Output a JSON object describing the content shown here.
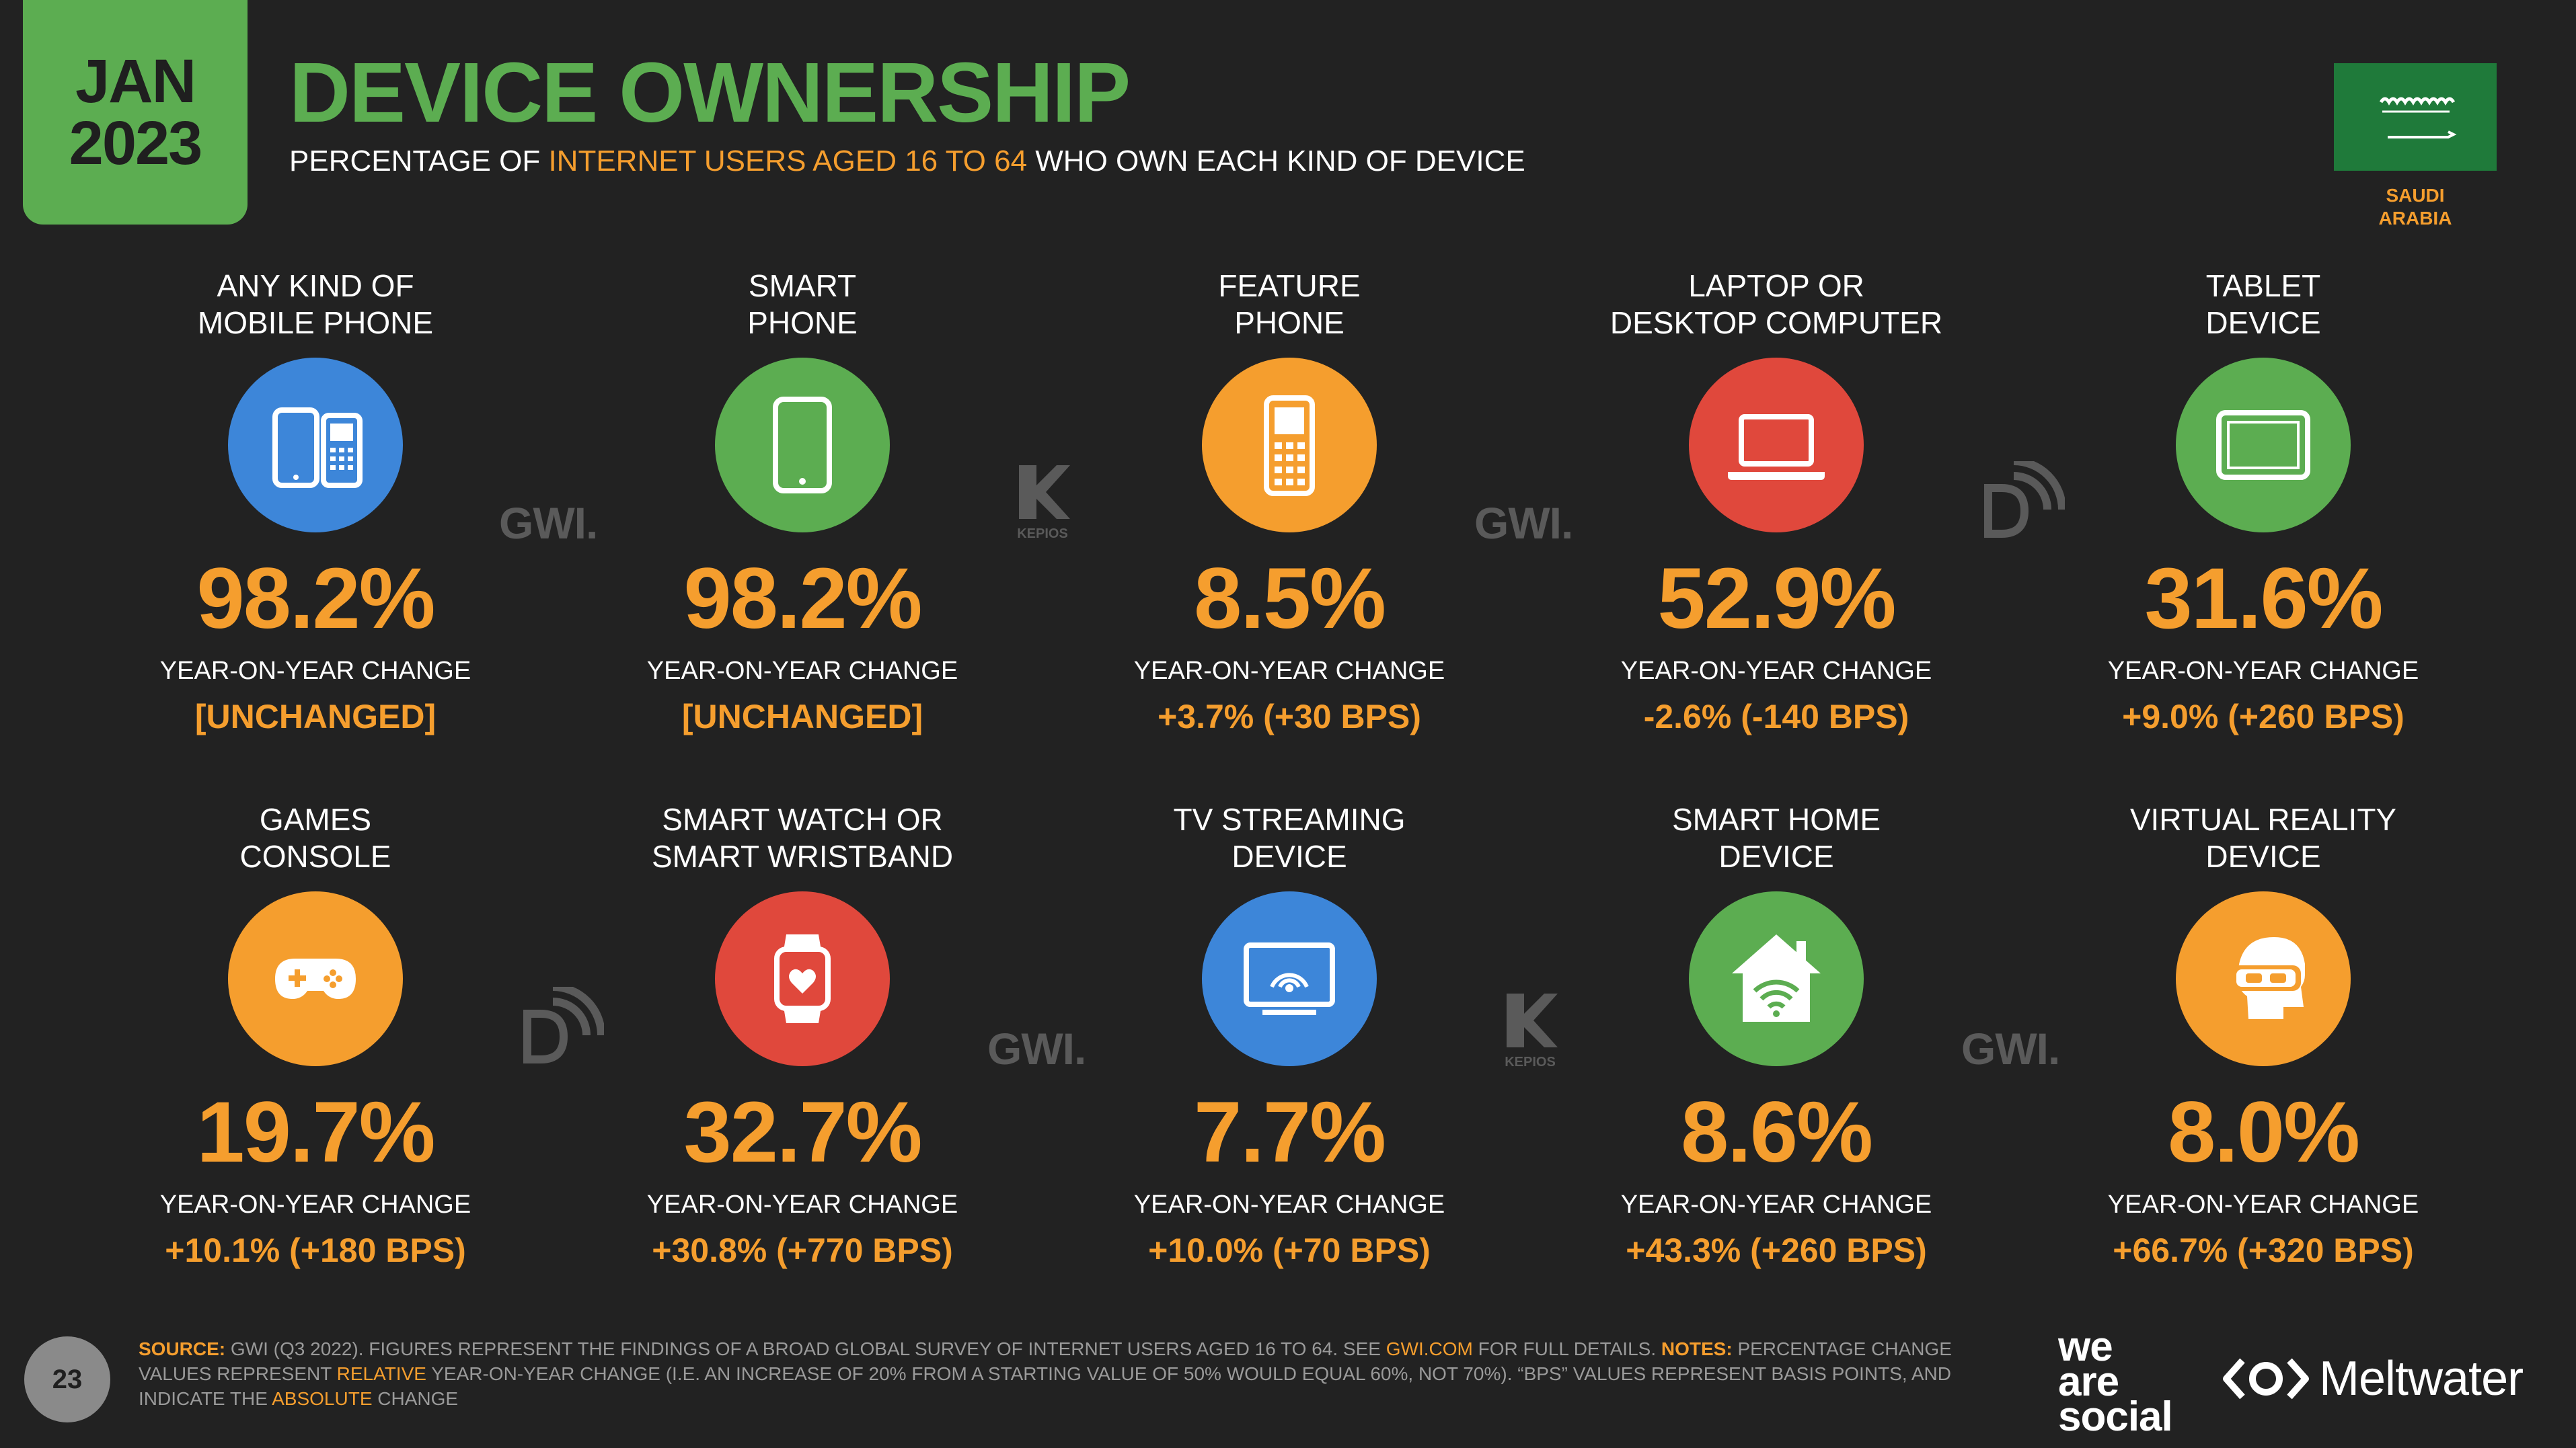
{
  "header": {
    "month": "JAN",
    "year": "2023",
    "title": "DEVICE OWNERSHIP",
    "subtitle_pre": "PERCENTAGE OF ",
    "subtitle_highlight": "INTERNET USERS AGED 16 TO 64",
    "subtitle_post": " WHO OWN EACH KIND OF DEVICE"
  },
  "country": {
    "line1": "SAUDI",
    "line2": "ARABIA",
    "flag_color": "#1f7a3a"
  },
  "colors": {
    "background": "#222222",
    "green": "#5cad51",
    "orange": "#f59e2e",
    "blue": "#3d86d9",
    "red": "#e0483c"
  },
  "devices": [
    {
      "label1": "ANY KIND OF",
      "label2": "MOBILE PHONE",
      "value": "98.2%",
      "yoy_label": "YEAR-ON-YEAR CHANGE",
      "yoy": "[UNCHANGED]",
      "icon": "mobile-phones-icon",
      "icon_color": "#3d86d9"
    },
    {
      "label1": "SMART",
      "label2": "PHONE",
      "value": "98.2%",
      "yoy_label": "YEAR-ON-YEAR CHANGE",
      "yoy": "[UNCHANGED]",
      "icon": "smartphone-icon",
      "icon_color": "#5cad51"
    },
    {
      "label1": "FEATURE",
      "label2": "PHONE",
      "value": "8.5%",
      "yoy_label": "YEAR-ON-YEAR CHANGE",
      "yoy": "+3.7% (+30 BPS)",
      "icon": "feature-phone-icon",
      "icon_color": "#f59e2e"
    },
    {
      "label1": "LAPTOP OR",
      "label2": "DESKTOP COMPUTER",
      "value": "52.9%",
      "yoy_label": "YEAR-ON-YEAR CHANGE",
      "yoy": "-2.6% (-140 BPS)",
      "icon": "laptop-icon",
      "icon_color": "#e0483c"
    },
    {
      "label1": "TABLET",
      "label2": "DEVICE",
      "value": "31.6%",
      "yoy_label": "YEAR-ON-YEAR CHANGE",
      "yoy": "+9.0% (+260 BPS)",
      "icon": "tablet-icon",
      "icon_color": "#5cad51"
    },
    {
      "label1": "GAMES",
      "label2": "CONSOLE",
      "value": "19.7%",
      "yoy_label": "YEAR-ON-YEAR CHANGE",
      "yoy": "+10.1% (+180 BPS)",
      "icon": "gamepad-icon",
      "icon_color": "#f59e2e"
    },
    {
      "label1": "SMART WATCH OR",
      "label2": "SMART WRISTBAND",
      "value": "32.7%",
      "yoy_label": "YEAR-ON-YEAR CHANGE",
      "yoy": "+30.8% (+770 BPS)",
      "icon": "smartwatch-icon",
      "icon_color": "#e0483c"
    },
    {
      "label1": "TV STREAMING",
      "label2": "DEVICE",
      "value": "7.7%",
      "yoy_label": "YEAR-ON-YEAR CHANGE",
      "yoy": "+10.0% (+70 BPS)",
      "icon": "tv-streaming-icon",
      "icon_color": "#3d86d9"
    },
    {
      "label1": "SMART HOME",
      "label2": "DEVICE",
      "value": "8.6%",
      "yoy_label": "YEAR-ON-YEAR CHANGE",
      "yoy": "+43.3% (+260 BPS)",
      "icon": "smart-home-icon",
      "icon_color": "#5cad51"
    },
    {
      "label1": "VIRTUAL REALITY",
      "label2": "DEVICE",
      "value": "8.0%",
      "yoy_label": "YEAR-ON-YEAR CHANGE",
      "yoy": "+66.7% (+320 BPS)",
      "icon": "vr-headset-icon",
      "icon_color": "#f59e2e"
    }
  ],
  "watermarks": {
    "gwi": "GWI.",
    "kepios": "KEPIOS"
  },
  "footer": {
    "page_number": "23",
    "source_label": "SOURCE:",
    "source_text": " GWI (Q3 2022). FIGURES REPRESENT THE FINDINGS OF A BROAD GLOBAL SURVEY OF INTERNET USERS AGED 16 TO 64. SEE ",
    "source_link": "GWI.COM",
    "source_text2": " FOR FULL DETAILS. ",
    "notes_label": "NOTES:",
    "notes_text1": " PERCENTAGE CHANGE VALUES REPRESENT ",
    "notes_relative": "RELATIVE",
    "notes_text2": " YEAR-ON-YEAR CHANGE (I.E. AN INCREASE OF 20% FROM A STARTING VALUE OF 50% WOULD EQUAL 60%, NOT 70%). “BPS” VALUES REPRESENT BASIS POINTS, AND INDICATE THE ",
    "notes_absolute": "ABSOLUTE",
    "notes_text3": " CHANGE"
  },
  "brands": {
    "was_line1": "we",
    "was_line2": "are",
    "was_line3": "social",
    "meltwater": "Meltwater"
  }
}
